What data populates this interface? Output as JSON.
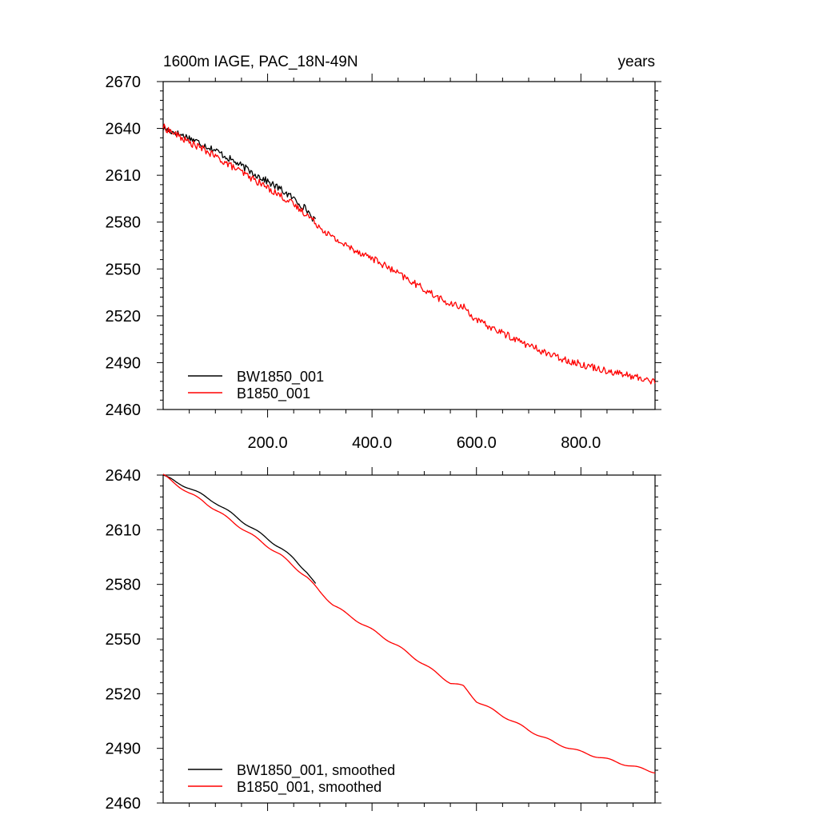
{
  "chart_data": [
    {
      "type": "line",
      "title": "1600m IAGE, PAC_18N-49N",
      "title_right": "years",
      "xlim": [
        0,
        942
      ],
      "ylim": [
        2460,
        2670
      ],
      "yticks": [
        2460,
        2490,
        2520,
        2550,
        2580,
        2610,
        2640,
        2670
      ],
      "xticks": [
        200,
        400,
        600,
        800
      ],
      "xtick_labels": [
        "200.0",
        "400.0",
        "600.0",
        "800.0"
      ],
      "legend_position": "bottom-left",
      "series": [
        {
          "name": "BW1850_001",
          "color": "#000000",
          "x": [
            0,
            25,
            50,
            75,
            100,
            125,
            150,
            175,
            200,
            225,
            250,
            275,
            292
          ],
          "y": [
            2640,
            2637,
            2634,
            2630,
            2626,
            2621,
            2616,
            2611,
            2606,
            2601,
            2595,
            2588,
            2580
          ]
        },
        {
          "name": "B1850_001",
          "color": "#ff0000",
          "x": [
            0,
            25,
            50,
            75,
            100,
            125,
            150,
            175,
            200,
            225,
            250,
            275,
            300,
            325,
            350,
            400,
            450,
            500,
            550,
            575,
            600,
            650,
            700,
            750,
            800,
            850,
            900,
            942
          ],
          "y": [
            2641,
            2636,
            2631,
            2627,
            2622,
            2617,
            2612,
            2607,
            2602,
            2597,
            2591,
            2585,
            2577,
            2570,
            2565,
            2557,
            2547,
            2537,
            2527,
            2526,
            2517,
            2509,
            2501,
            2494,
            2489,
            2485,
            2481,
            2478
          ]
        }
      ]
    },
    {
      "type": "line",
      "xlim": [
        0,
        942
      ],
      "ylim": [
        2460,
        2640
      ],
      "yticks": [
        2460,
        2490,
        2520,
        2550,
        2580,
        2610,
        2640
      ],
      "legend_position": "bottom-left",
      "series": [
        {
          "name": "BW1850_001, smoothed",
          "color": "#000000",
          "x": [
            0,
            25,
            50,
            75,
            100,
            125,
            150,
            175,
            200,
            225,
            250,
            275,
            292
          ],
          "y": [
            2640,
            2636,
            2633,
            2629,
            2625,
            2620,
            2615,
            2610,
            2605,
            2600,
            2594,
            2587,
            2580
          ]
        },
        {
          "name": "B1850_001, smoothed",
          "color": "#ff0000",
          "x": [
            0,
            25,
            50,
            75,
            100,
            125,
            150,
            175,
            200,
            225,
            250,
            275,
            300,
            325,
            350,
            400,
            450,
            500,
            550,
            575,
            600,
            650,
            700,
            750,
            800,
            850,
            900,
            942
          ],
          "y": [
            2640,
            2635,
            2630,
            2626,
            2621,
            2616,
            2611,
            2606,
            2601,
            2596,
            2590,
            2584,
            2576,
            2569,
            2564,
            2555,
            2546,
            2536,
            2526,
            2524,
            2516,
            2508,
            2500,
            2493,
            2488,
            2484,
            2480,
            2477
          ]
        }
      ]
    }
  ]
}
